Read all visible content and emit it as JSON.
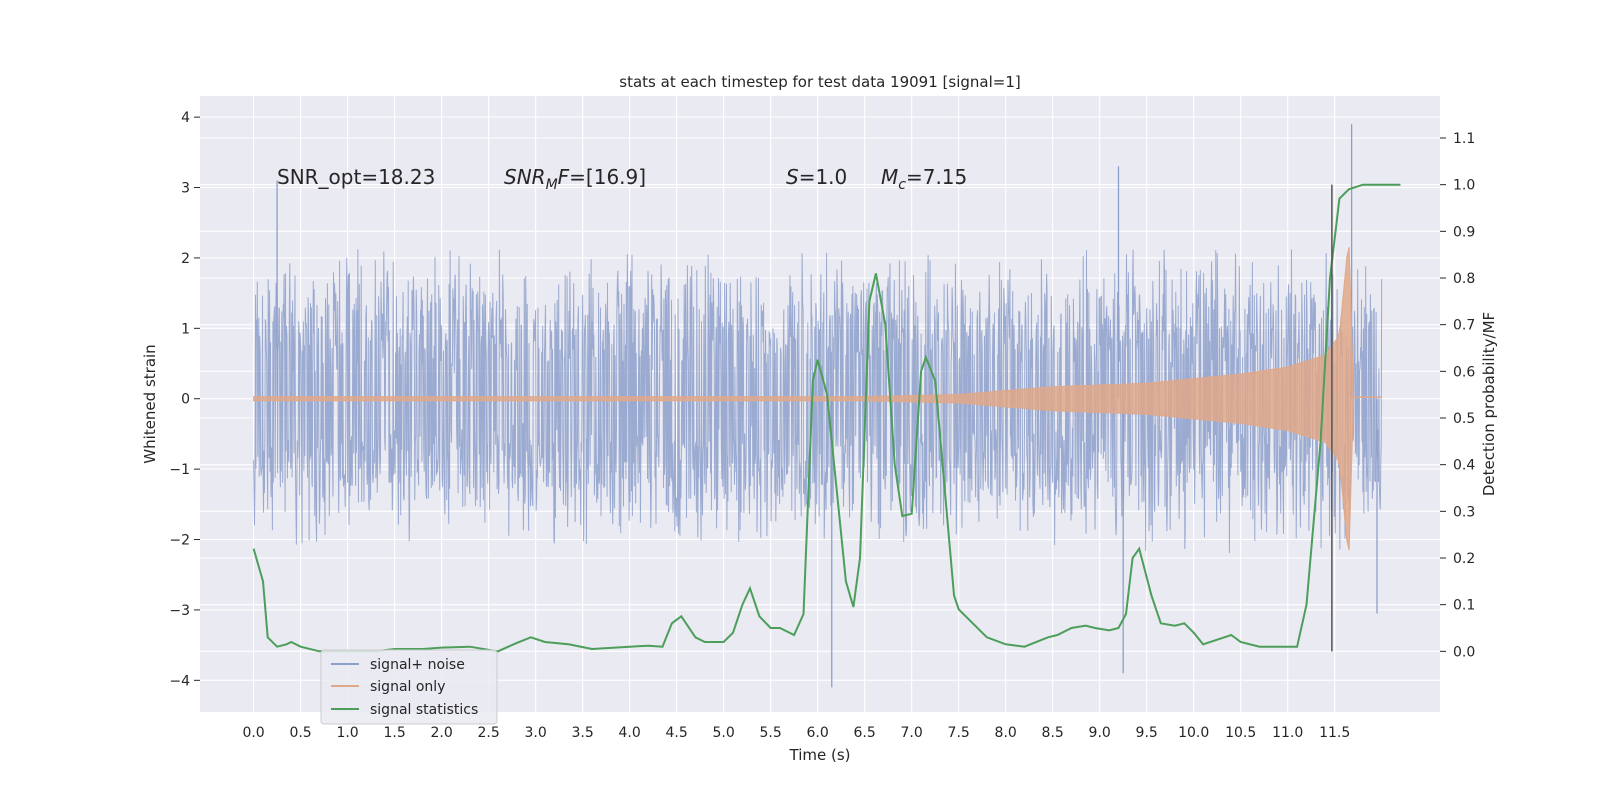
{
  "chart_data": {
    "type": "line",
    "title": "stats at each timestep for test data 19091 [signal=1]",
    "xlabel": "Time (s)",
    "ylabel": "Whitened strain",
    "y2label": "Detection probability/MF",
    "xlim": [
      -0.57,
      12.62
    ],
    "ylim": [
      -4.45,
      4.3
    ],
    "y2lim": [
      -0.13,
      1.19
    ],
    "x_ticks": [
      0.0,
      0.5,
      1.0,
      1.5,
      2.0,
      2.5,
      3.0,
      3.5,
      4.0,
      4.5,
      5.0,
      5.5,
      6.0,
      6.5,
      7.0,
      7.5,
      8.0,
      8.5,
      9.0,
      9.5,
      10.0,
      10.5,
      11.0,
      11.5
    ],
    "x_tick_labels": [
      "0.0",
      "0.5",
      "1.0",
      "1.5",
      "2.0",
      "2.5",
      "3.0",
      "3.5",
      "4.0",
      "4.5",
      "5.0",
      "5.5",
      "6.0",
      "6.5",
      "7.0",
      "7.5",
      "8.0",
      "8.5",
      "9.0",
      "9.5",
      "10.0",
      "10.5",
      "11.0",
      "11.5"
    ],
    "y_ticks": [
      -4,
      -3,
      -2,
      -1,
      0,
      1,
      2,
      3,
      4
    ],
    "y_tick_labels": [
      "−4",
      "−3",
      "−2",
      "−1",
      "0",
      "1",
      "2",
      "3",
      "4"
    ],
    "y2_ticks": [
      0.0,
      0.1,
      0.2,
      0.3,
      0.4,
      0.5,
      0.6,
      0.7,
      0.8,
      0.9,
      1.0,
      1.1
    ],
    "y2_tick_labels": [
      "0.0",
      "0.1",
      "0.2",
      "0.3",
      "0.4",
      "0.5",
      "0.6",
      "0.7",
      "0.8",
      "0.9",
      "1.0",
      "1.1"
    ],
    "grid": true,
    "legend_position": "lower-left",
    "series": [
      {
        "name": "signal+ noise",
        "color": "#8c9fca",
        "axis": "left",
        "style": "dense noise trace",
        "x_range": [
          0.0,
          12.0
        ],
        "typical_envelope": [
          -2.2,
          2.2
        ],
        "notable_peaks": [
          {
            "x": 0.25,
            "y": 3.1
          },
          {
            "x": 6.15,
            "y": -4.1
          },
          {
            "x": 9.25,
            "y": -3.9
          },
          {
            "x": 9.2,
            "y": 3.3
          },
          {
            "x": 11.68,
            "y": 3.9
          },
          {
            "x": 11.95,
            "y": -3.05
          }
        ]
      },
      {
        "name": "signal only",
        "color": "#e0a88a",
        "axis": "left",
        "style": "chirp",
        "x_range": [
          0.0,
          11.7
        ],
        "envelope": [
          {
            "x": 0.0,
            "y": 0.03
          },
          {
            "x": 6.5,
            "y": 0.03
          },
          {
            "x": 7.5,
            "y": 0.06
          },
          {
            "x": 8.5,
            "y": 0.17
          },
          {
            "x": 9.5,
            "y": 0.22
          },
          {
            "x": 10.5,
            "y": 0.35
          },
          {
            "x": 11.0,
            "y": 0.45
          },
          {
            "x": 11.4,
            "y": 0.62
          },
          {
            "x": 11.55,
            "y": 0.9
          },
          {
            "x": 11.65,
            "y": 2.3
          },
          {
            "x": 11.7,
            "y": 0.0
          }
        ],
        "tail_value": 0.02
      },
      {
        "name": "signal statistics",
        "color": "#4c9e5a",
        "axis": "right",
        "points": [
          [
            0.0,
            0.22
          ],
          [
            0.1,
            0.15
          ],
          [
            0.15,
            0.03
          ],
          [
            0.25,
            0.01
          ],
          [
            0.35,
            0.015
          ],
          [
            0.4,
            0.02
          ],
          [
            0.5,
            0.01
          ],
          [
            0.7,
            0.0
          ],
          [
            1.0,
            0.0
          ],
          [
            1.3,
            0.0
          ],
          [
            1.5,
            0.005
          ],
          [
            1.8,
            0.005
          ],
          [
            2.0,
            0.008
          ],
          [
            2.3,
            0.01
          ],
          [
            2.6,
            0.0
          ],
          [
            2.8,
            0.018
          ],
          [
            2.95,
            0.03
          ],
          [
            3.1,
            0.02
          ],
          [
            3.35,
            0.015
          ],
          [
            3.6,
            0.005
          ],
          [
            4.0,
            0.01
          ],
          [
            4.2,
            0.012
          ],
          [
            4.35,
            0.01
          ],
          [
            4.45,
            0.06
          ],
          [
            4.55,
            0.075
          ],
          [
            4.7,
            0.03
          ],
          [
            4.8,
            0.02
          ],
          [
            5.0,
            0.02
          ],
          [
            5.1,
            0.04
          ],
          [
            5.2,
            0.1
          ],
          [
            5.28,
            0.135
          ],
          [
            5.38,
            0.075
          ],
          [
            5.5,
            0.05
          ],
          [
            5.6,
            0.05
          ],
          [
            5.75,
            0.035
          ],
          [
            5.85,
            0.08
          ],
          [
            5.95,
            0.58
          ],
          [
            6.0,
            0.625
          ],
          [
            6.1,
            0.55
          ],
          [
            6.2,
            0.35
          ],
          [
            6.3,
            0.15
          ],
          [
            6.38,
            0.095
          ],
          [
            6.45,
            0.2
          ],
          [
            6.55,
            0.75
          ],
          [
            6.62,
            0.81
          ],
          [
            6.72,
            0.7
          ],
          [
            6.82,
            0.4
          ],
          [
            6.9,
            0.29
          ],
          [
            7.0,
            0.295
          ],
          [
            7.1,
            0.6
          ],
          [
            7.15,
            0.63
          ],
          [
            7.25,
            0.58
          ],
          [
            7.35,
            0.35
          ],
          [
            7.45,
            0.12
          ],
          [
            7.5,
            0.09
          ],
          [
            7.6,
            0.07
          ],
          [
            7.8,
            0.03
          ],
          [
            8.0,
            0.015
          ],
          [
            8.2,
            0.01
          ],
          [
            8.45,
            0.03
          ],
          [
            8.55,
            0.035
          ],
          [
            8.7,
            0.05
          ],
          [
            8.85,
            0.055
          ],
          [
            8.95,
            0.05
          ],
          [
            9.1,
            0.045
          ],
          [
            9.2,
            0.05
          ],
          [
            9.28,
            0.08
          ],
          [
            9.35,
            0.2
          ],
          [
            9.42,
            0.22
          ],
          [
            9.55,
            0.12
          ],
          [
            9.65,
            0.06
          ],
          [
            9.8,
            0.055
          ],
          [
            9.9,
            0.06
          ],
          [
            10.0,
            0.04
          ],
          [
            10.1,
            0.015
          ],
          [
            10.25,
            0.025
          ],
          [
            10.4,
            0.035
          ],
          [
            10.5,
            0.02
          ],
          [
            10.7,
            0.01
          ],
          [
            11.0,
            0.01
          ],
          [
            11.1,
            0.01
          ],
          [
            11.2,
            0.1
          ],
          [
            11.35,
            0.45
          ],
          [
            11.45,
            0.8
          ],
          [
            11.55,
            0.97
          ],
          [
            11.65,
            0.99
          ],
          [
            11.8,
            1.0
          ],
          [
            12.0,
            1.0
          ],
          [
            12.2,
            1.0
          ]
        ]
      }
    ],
    "vertical_line": {
      "x": 11.47,
      "color": "#555555"
    },
    "annotations": [
      {
        "id": "snr_opt",
        "x": 0.2,
        "y": 3.0,
        "text": "SNR_opt=18.23"
      },
      {
        "id": "snr_mf",
        "x": 2.6,
        "y": 3.0,
        "text": "SNR_MF=[16.9]"
      },
      {
        "id": "s",
        "x": 5.6,
        "y": 3.0,
        "text": "S=1.0"
      },
      {
        "id": "mc",
        "x": 6.6,
        "y": 3.0,
        "text": "M_c=7.15"
      }
    ]
  },
  "text": {
    "annot_snr_opt": "SNR_opt=18.23",
    "annot_snr_mf_main": "SNR",
    "annot_snr_mf_sub": "M",
    "annot_snr_mf_rest": "F",
    "annot_snr_mf_value": "=[16.9]",
    "annot_s_symbol": "S",
    "annot_s_value": "=1.0",
    "annot_mc_main": "M",
    "annot_mc_sub": "c",
    "annot_mc_value": "=7.15"
  }
}
